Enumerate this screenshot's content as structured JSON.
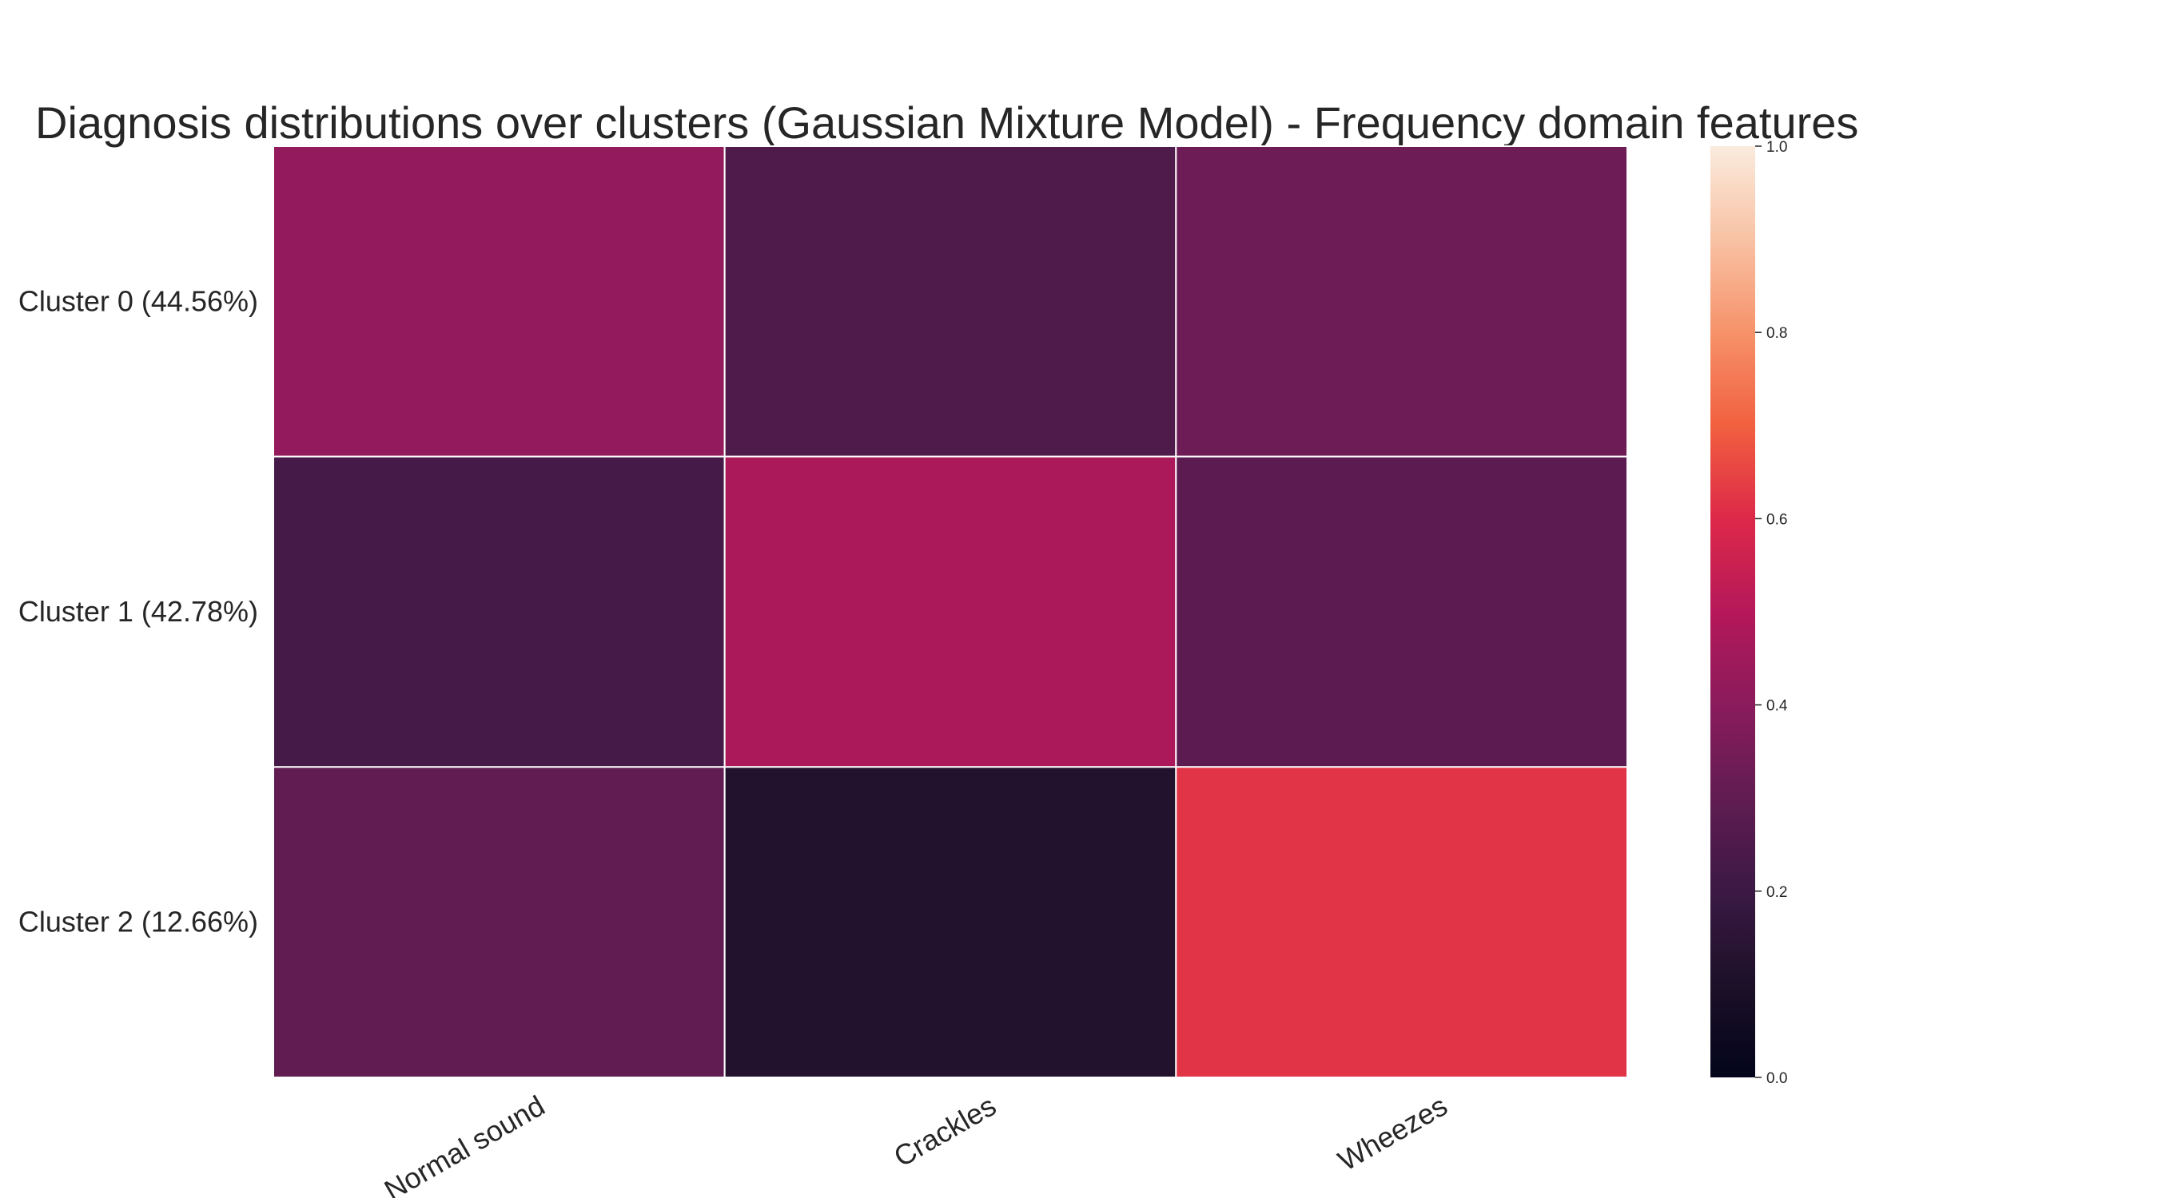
{
  "chart_data": {
    "type": "heatmap",
    "title": "Diagnosis distributions over clusters (Gaussian Mixture Model) - Frequency domain features",
    "rows": [
      "Cluster 0 (44.56%)",
      "Cluster 1 (42.78%)",
      "Cluster 2 (12.66%)"
    ],
    "columns": [
      "Normal sound",
      "Crackles",
      "Wheezes"
    ],
    "values": [
      [
        0.42,
        0.25,
        0.33
      ],
      [
        0.23,
        0.48,
        0.29
      ],
      [
        0.3,
        0.12,
        0.62
      ]
    ],
    "colorbar": {
      "range": [
        0.0,
        1.0
      ],
      "ticks": [
        "0.0",
        "0.2",
        "0.4",
        "0.6",
        "0.8",
        "1.0"
      ],
      "colormap": "rocket"
    },
    "cell_border_color": "#ffffff"
  }
}
